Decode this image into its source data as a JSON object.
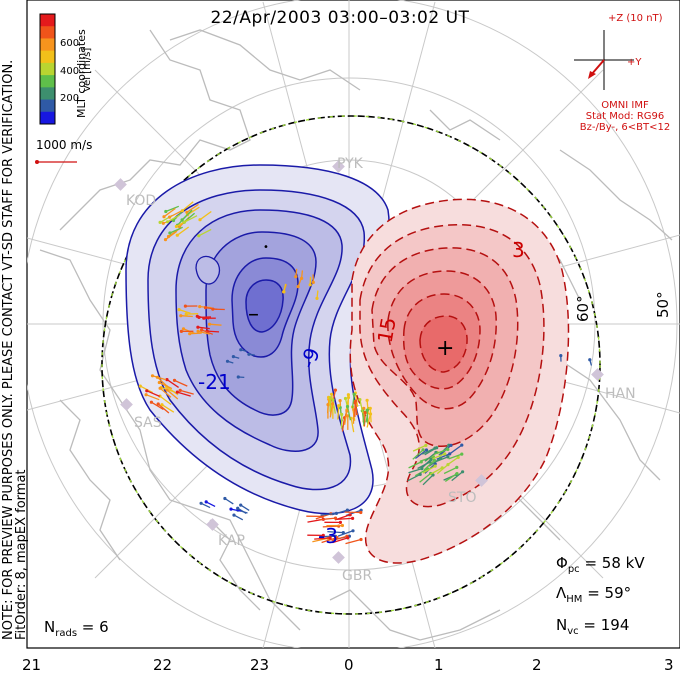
{
  "title": "22/Apr/2003 03:00–03:02 UT",
  "side_note": {
    "line1": "NOTE: FOR PREVIEW PURPOSES ONLY. PLEASE CONTACT VT-SD STAFF FOR VERIFICATION.",
    "line2": "FitOrder: 8, mapEX format"
  },
  "colorbar": {
    "title": "MLT coordinates",
    "unit": "Vel [m/s]",
    "ticks": [
      "600",
      "400",
      "200"
    ],
    "colors": [
      "#e41a1c",
      "#f0541a",
      "#f7941d",
      "#f2c01a",
      "#b9d531",
      "#5fbf4a",
      "#3d8f6e",
      "#2f5aa6",
      "#1717e0"
    ]
  },
  "reference_vector": "1000 m/s",
  "imf": {
    "bz_label": "+Z (10 nT)",
    "by_label": "+Y",
    "source": "OMNI IMF",
    "model": "Stat Mod: RG96",
    "condition": "Bz-/By-, 6<BT<12"
  },
  "stats": {
    "phi_pc": "58 kV",
    "lambda_hm": "59°",
    "n_vc": "194",
    "n_rads": "6"
  },
  "mlt_labels": [
    "21",
    "22",
    "23",
    "0",
    "1",
    "2",
    "3"
  ],
  "lat_labels": [
    "60°",
    "50°"
  ],
  "stations": [
    "KOD",
    "SAS",
    "KAP",
    "GBR",
    "STO",
    "HAN",
    "PYK"
  ],
  "contour_labels": [
    "-21",
    "-9",
    "-3",
    "15",
    "3",
    "-"
  ],
  "colors": {
    "negative": "#0000cc",
    "positive": "#cc0000",
    "station": "#bdbdbd"
  }
}
